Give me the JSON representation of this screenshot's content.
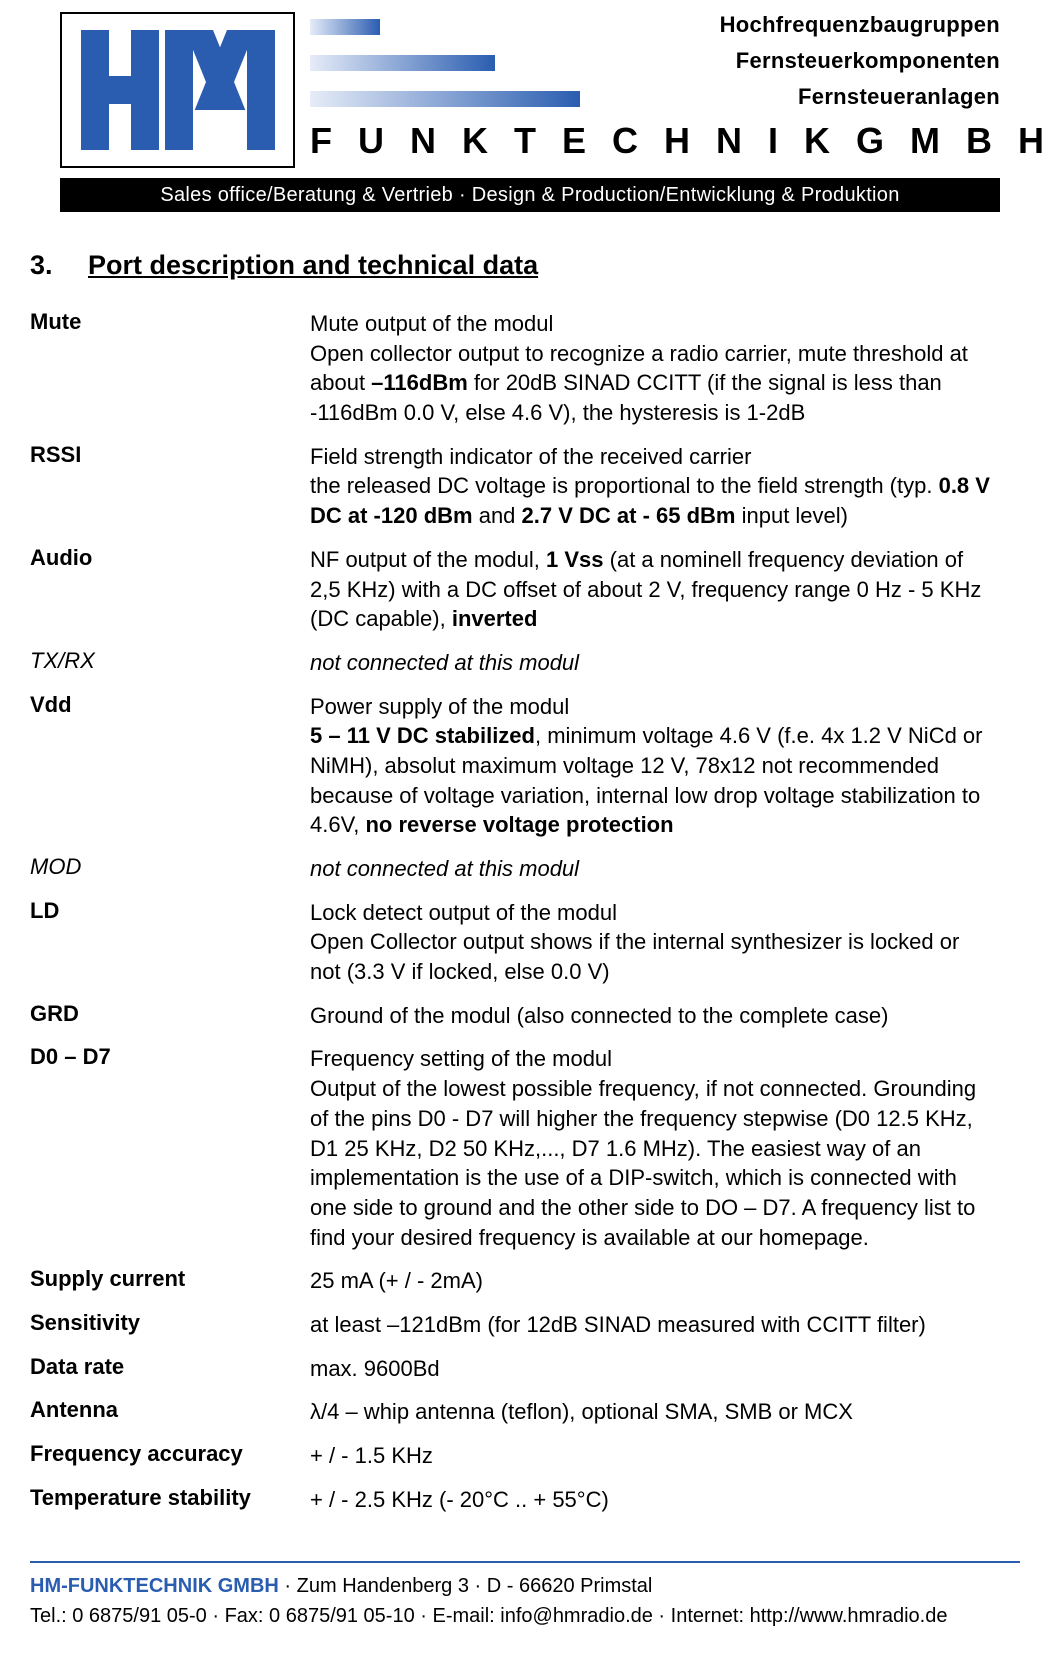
{
  "header": {
    "taglines": [
      "Hochfrequenzbaugruppen",
      "Fernsteuerkomponenten",
      "Fernsteueranlagen"
    ],
    "company_line": "F U N K T E C H N I K    G M B H",
    "black_strip": "Sales office/Beratung & Vertrieb · Design & Production/Entwicklung & Produktion"
  },
  "section": {
    "number": "3.",
    "title": "Port description and technical data"
  },
  "specs": [
    {
      "label": "Mute",
      "label_bold": true,
      "desc": "Mute output of the modul<br>Open collector output to recognize a radio carrier, mute threshold at about <b>–116dBm</b> for 20dB SINAD CCITT (if the signal is less than -116dBm 0.0 V, else 4.6 V), the hysteresis is 1-2dB"
    },
    {
      "label": "RSSI",
      "label_bold": true,
      "desc": "Field strength indicator of the received carrier<br>the released DC voltage is proportional to the field strength (typ. <b>0.8 V DC at -120 dBm</b> and <b>2.7 V DC at - 65 dBm</b> input level)"
    },
    {
      "label": "Audio",
      "label_bold": true,
      "desc": "NF output of the modul, <b>1 Vss</b> (at a nominell frequency deviation of 2,5 KHz) with a DC offset of about 2 V, frequency range 0 Hz - 5 KHz (DC capable), <b>inverted</b>"
    },
    {
      "label": "TX/RX",
      "label_italic": true,
      "desc": "not connected at this modul",
      "desc_italic": true
    },
    {
      "label": "Vdd",
      "label_bold": true,
      "desc": "Power supply of the modul<br><b>5 – 11 V DC stabilized</b>, minimum voltage 4.6 V (f.e. 4x 1.2 V NiCd or NiMH), absolut maximum voltage 12 V, 78x12 not recommended because of voltage variation, internal low drop voltage stabilization to 4.6V, <b>no reverse voltage protection</b>"
    },
    {
      "label": "MOD",
      "label_italic": true,
      "desc": "not connected at this modul",
      "desc_italic": true
    },
    {
      "label": "LD",
      "label_bold": true,
      "desc": "Lock detect output of the modul<br>Open Collector output shows if the internal synthesizer is locked or not (3.3 V if locked, else 0.0 V)"
    },
    {
      "label": "GRD",
      "label_bold": true,
      "desc": "Ground of the modul (also connected to the complete case)"
    },
    {
      "label": "D0 – D7",
      "label_bold": true,
      "desc": "Frequency  setting of the modul<br>Output of the lowest possible frequency, if not connected. Grounding of the pins D0 - D7 will higher the frequency stepwise (D0 12.5 KHz, D1 25 KHz, D2 50 KHz,..., D7 1.6 MHz). The easiest way of an implementation is the use of a DIP-switch, which is connected with  one side to ground and the other side to DO – D7. A frequency list to find your desired frequency is available at our homepage."
    },
    {
      "label": "Supply current",
      "label_bold": true,
      "desc": "25 mA (+ / - 2mA)"
    },
    {
      "label": "Sensitivity",
      "label_bold": true,
      "desc": "at least –121dBm (for 12dB SINAD measured with CCITT filter)"
    },
    {
      "label": "Data rate",
      "label_bold": true,
      "desc": "max. 9600Bd"
    },
    {
      "label": "Antenna",
      "label_bold": true,
      "desc": "λ/4 – whip antenna (teflon), optional SMA, SMB or MCX"
    },
    {
      "label": "Frequency accuracy",
      "label_bold": true,
      "desc": "+ / - 1.5 KHz"
    },
    {
      "label": "Temperature stability",
      "label_bold": true,
      "desc": "+ / - 2.5 KHz  (- 20°C .. + 55°C)"
    }
  ],
  "footer": {
    "company": "HM-FUNKTECHNIK GMBH",
    "address": " · Zum Handenberg 3 · D - 66620 Primstal",
    "line2": "Tel.: 0 6875/91 05-0 · Fax: 0 6875/91 05-10 · E-mail: info@hmradio.de · Internet: http://www.hmradio.de"
  }
}
